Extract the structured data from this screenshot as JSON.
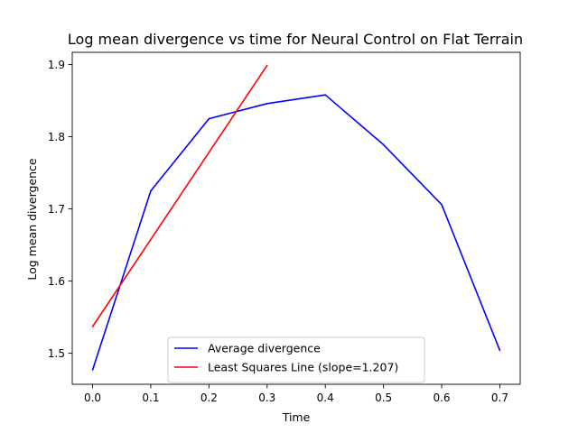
{
  "chart_data": {
    "type": "line",
    "title": "Log mean divergence vs time for Neural Control on Flat Terrain",
    "xlabel": "Time",
    "ylabel": "Log mean divergence",
    "xlim": [
      -0.035,
      0.735
    ],
    "ylim": [
      1.457,
      1.917
    ],
    "xticks": [
      "0.0",
      "0.1",
      "0.2",
      "0.3",
      "0.4",
      "0.5",
      "0.6",
      "0.7"
    ],
    "yticks": [
      "1.5",
      "1.6",
      "1.7",
      "1.8",
      "1.9"
    ],
    "grid": false,
    "legend_position": "lower center",
    "series": [
      {
        "name": "Average divergence",
        "color": "#0000ff",
        "x": [
          0.0,
          0.1,
          0.2,
          0.3,
          0.4,
          0.5,
          0.6,
          0.7
        ],
        "y": [
          1.477,
          1.725,
          1.825,
          1.846,
          1.858,
          1.789,
          1.706,
          1.504
        ]
      },
      {
        "name": "Least Squares Line (slope=1.207)",
        "color": "#ff0000",
        "x": [
          0.0,
          0.3
        ],
        "y": [
          1.537,
          1.899
        ]
      }
    ]
  }
}
